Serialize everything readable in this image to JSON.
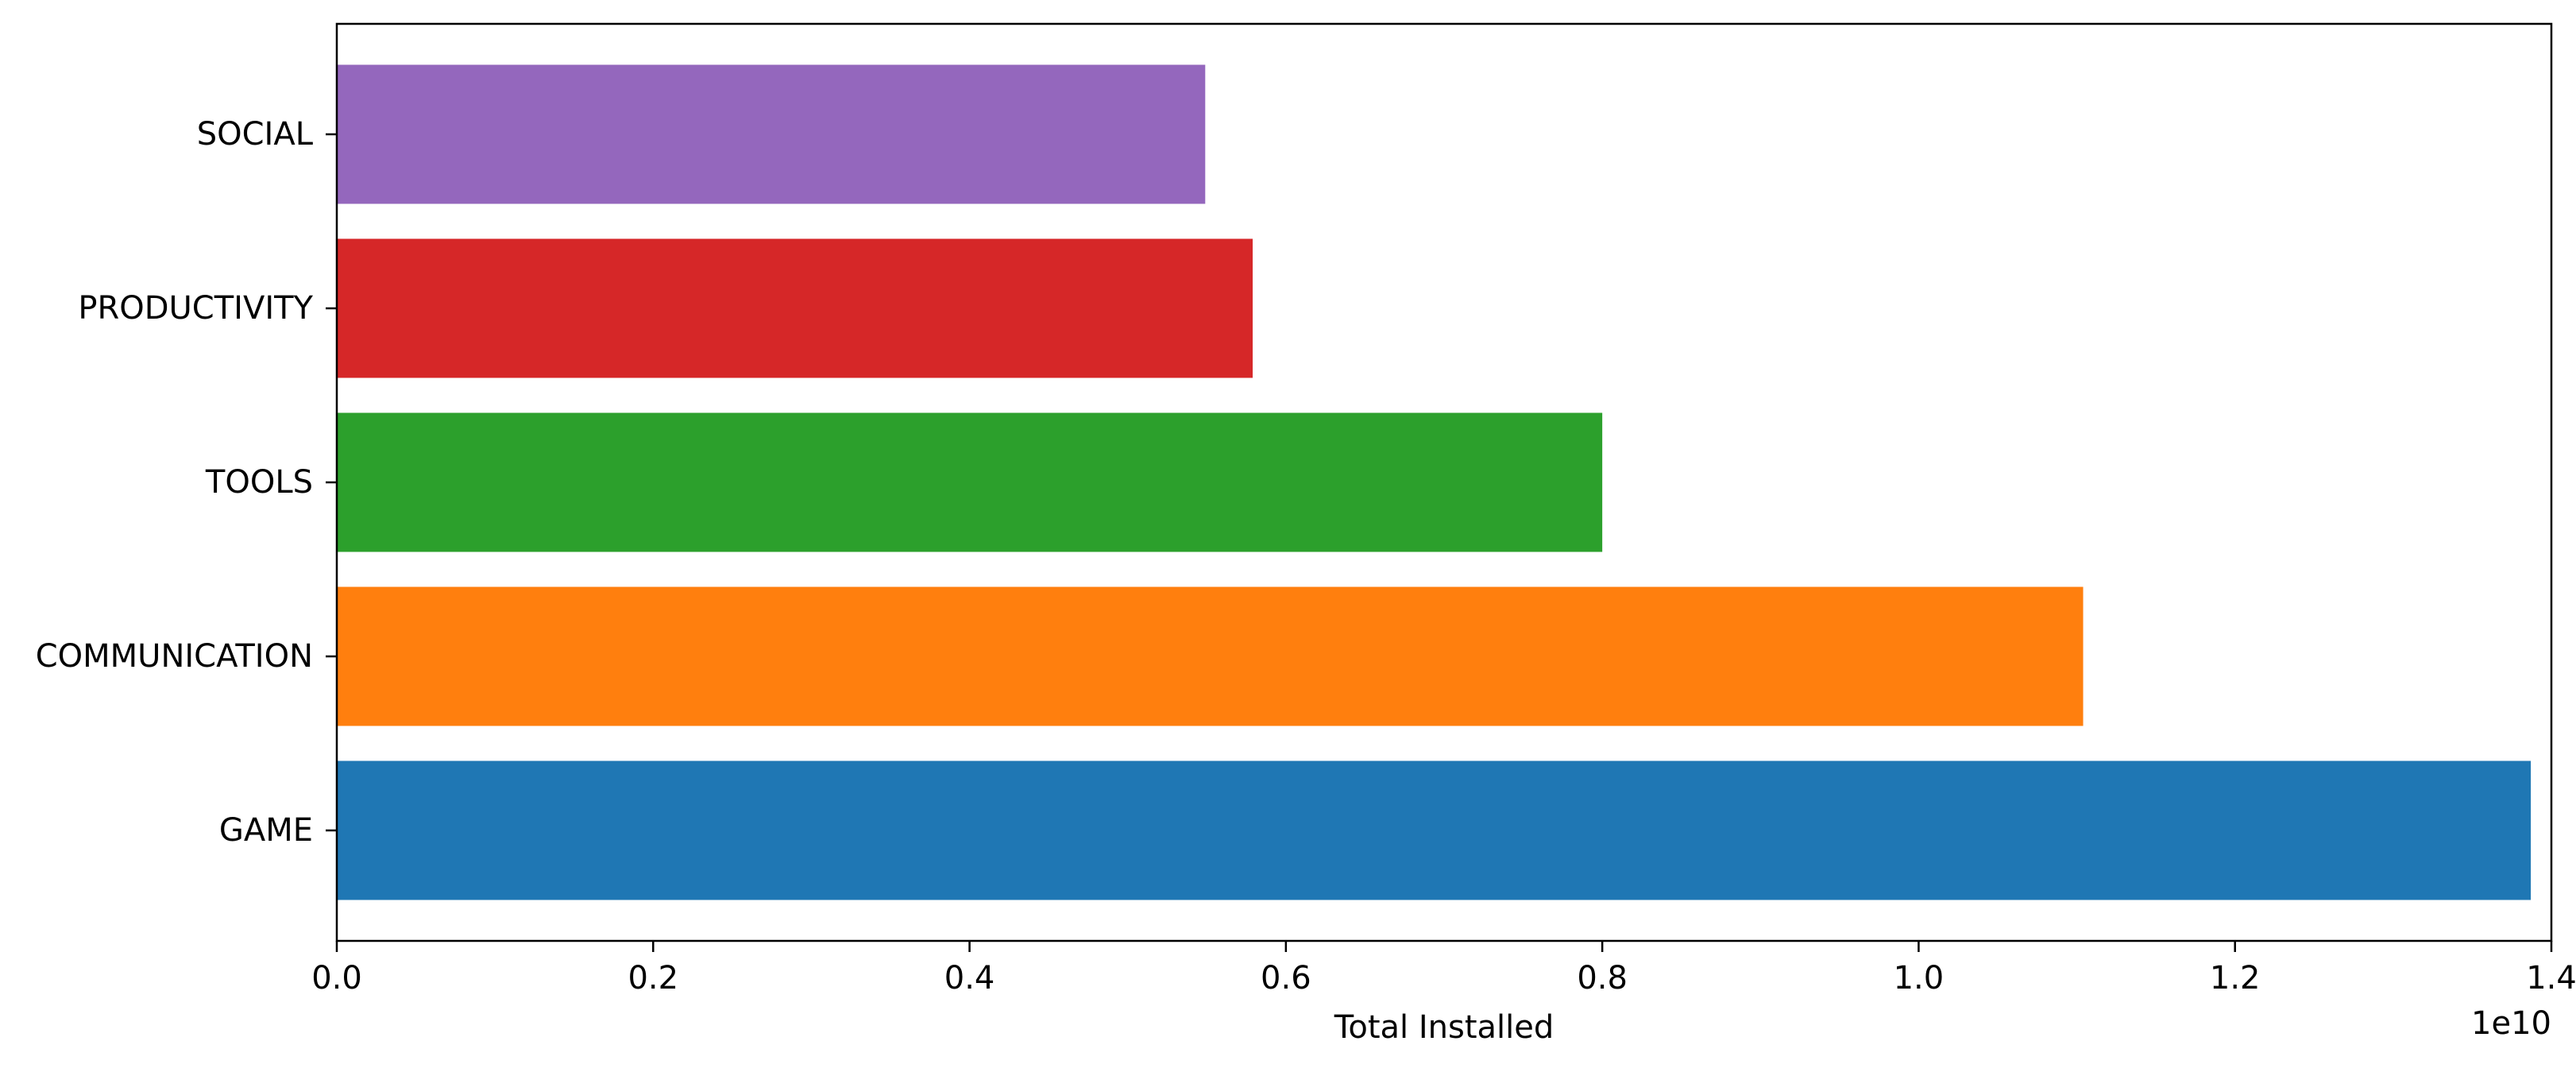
{
  "chart_data": {
    "type": "bar",
    "orientation": "horizontal",
    "title": "",
    "xlabel": "Total Installed",
    "ylabel": "",
    "x_scale_label": "1e10",
    "xlim": [
      0,
      1.4
    ],
    "x_ticks": [
      "0.0",
      "0.2",
      "0.4",
      "0.6",
      "0.8",
      "1.0",
      "1.2",
      "1.4"
    ],
    "categories": [
      "GAME",
      "COMMUNICATION",
      "TOOLS",
      "PRODUCTIVITY",
      "SOCIAL"
    ],
    "values": [
      1.387,
      1.104,
      0.8,
      0.579,
      0.549
    ],
    "colors": [
      "#1f77b4",
      "#ff7f0e",
      "#2ca02c",
      "#d62728",
      "#9467bd"
    ],
    "grid": false,
    "legend": "none"
  }
}
